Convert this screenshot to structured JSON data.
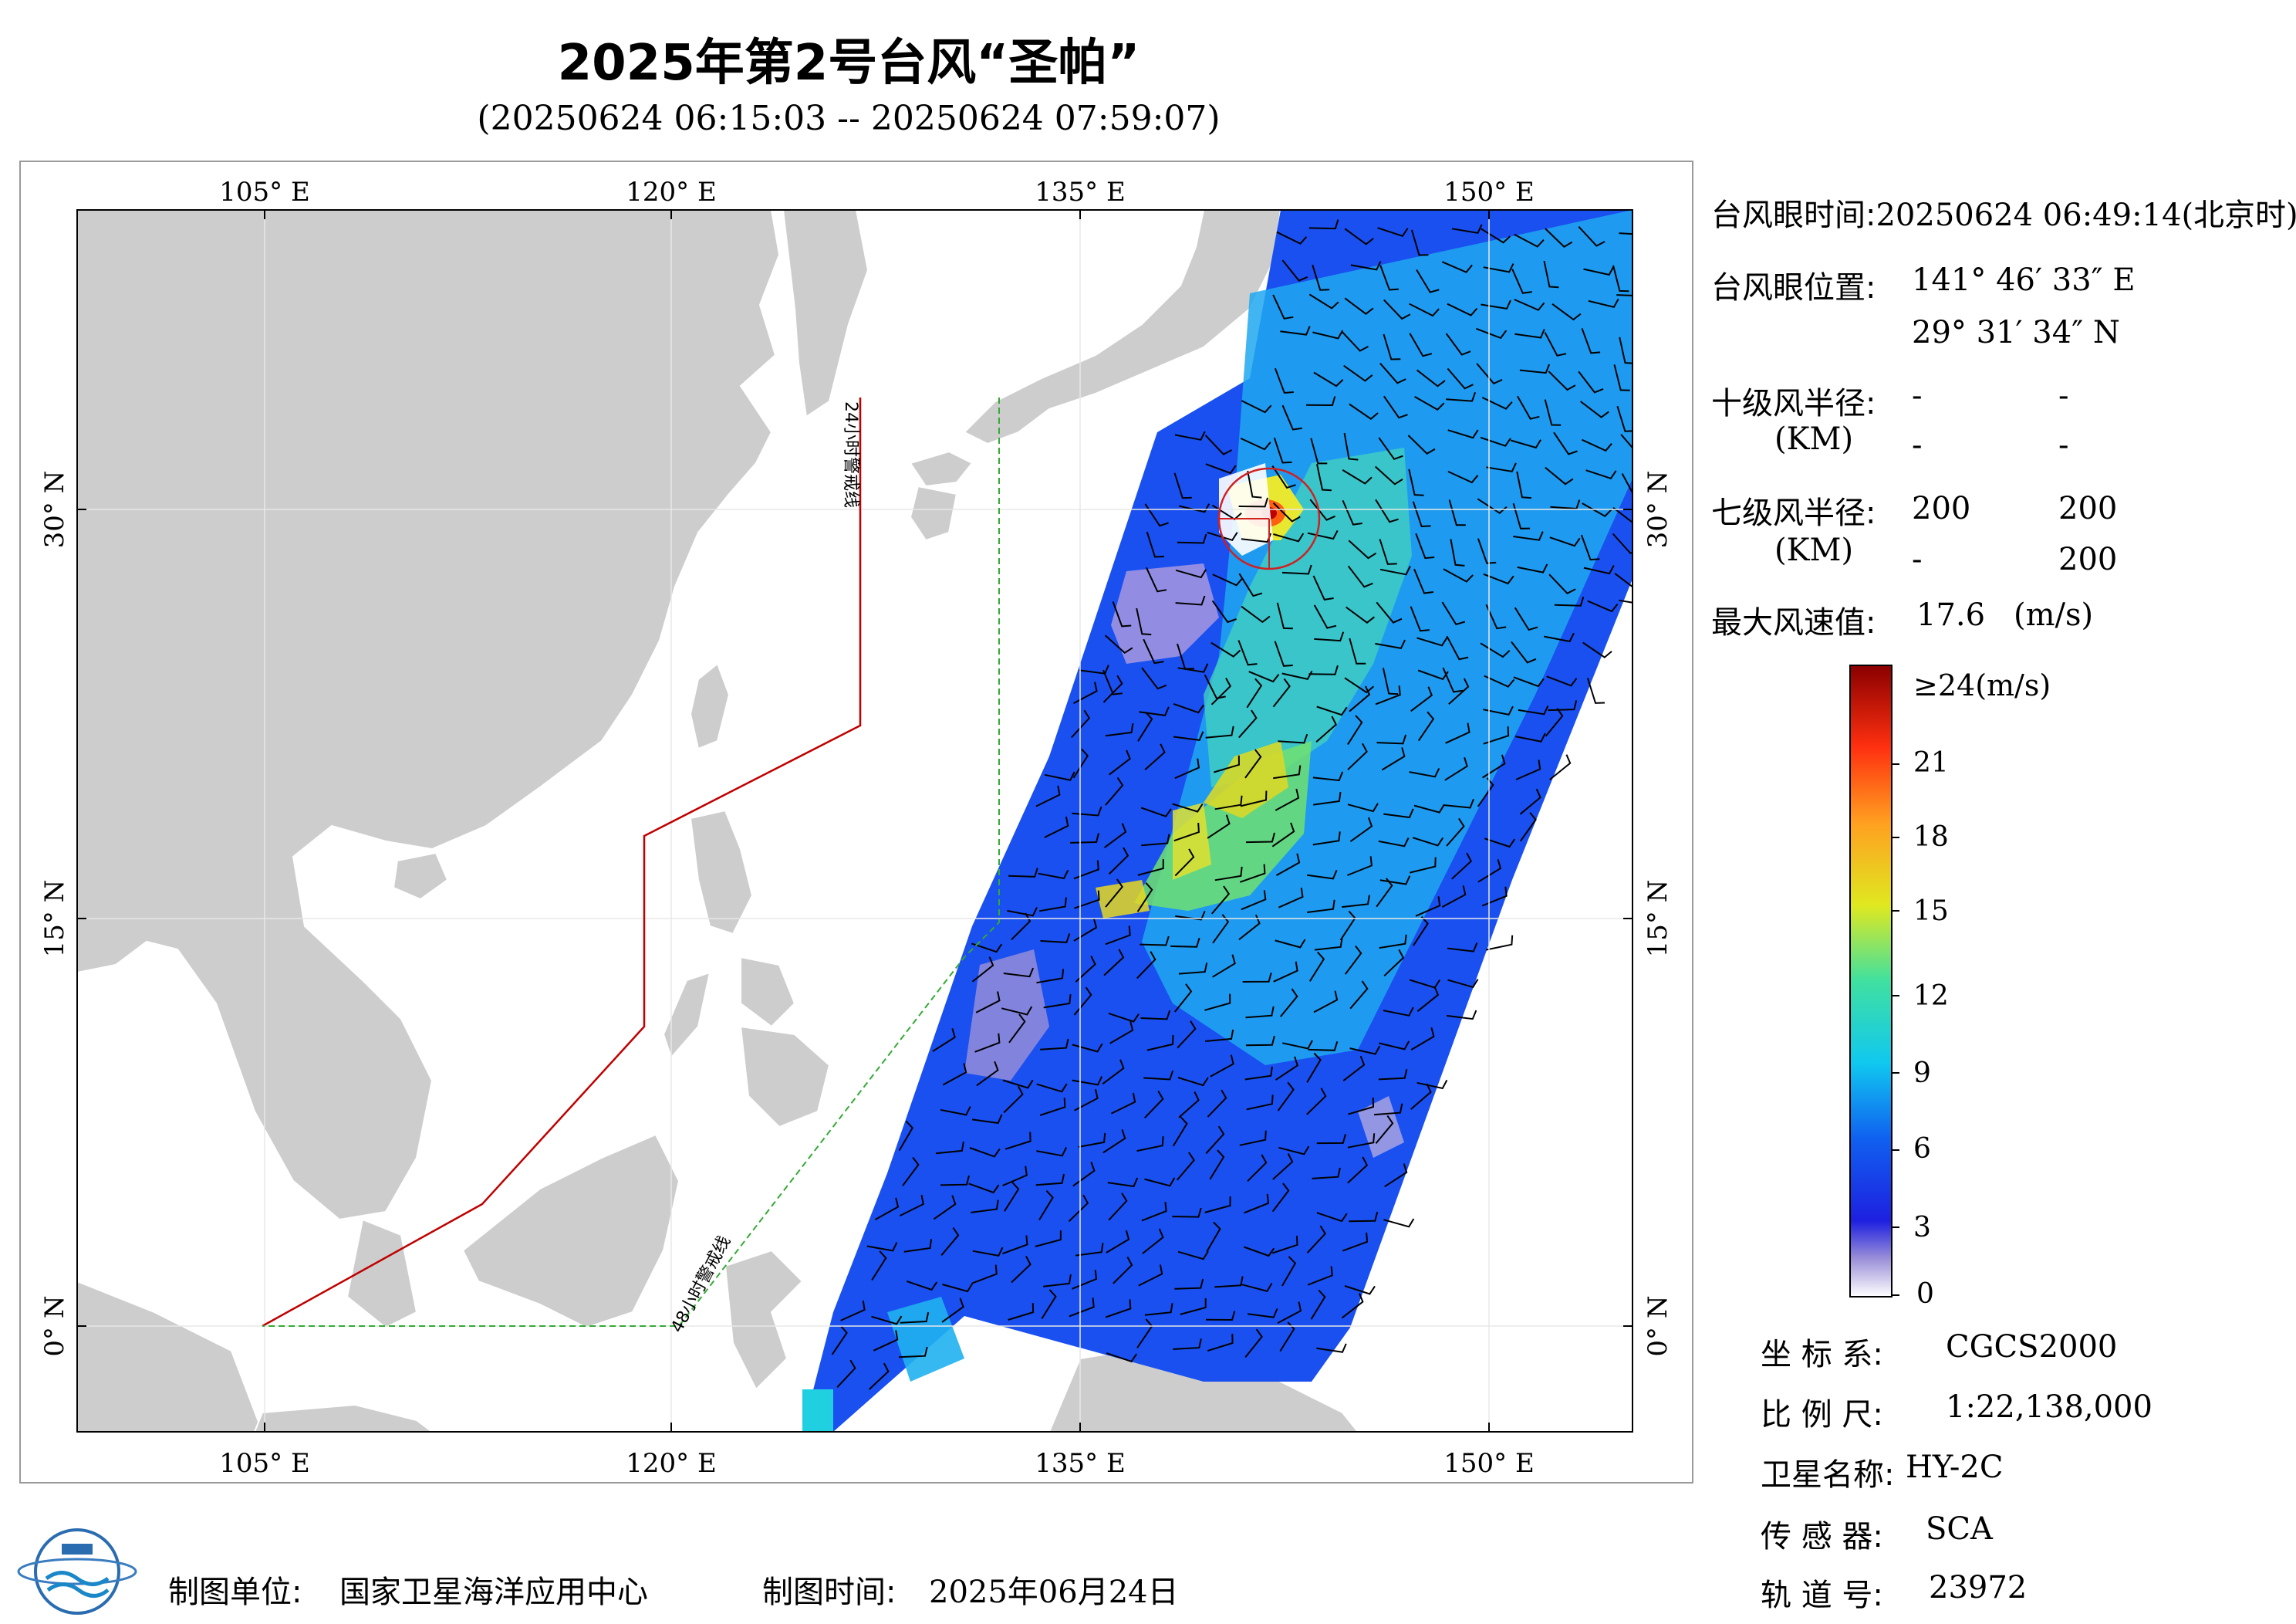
{
  "title": "2025年第2号台风“圣帕”",
  "subtitle": "(20250624 06:15:03 -- 20250624 07:59:07)",
  "map": {
    "lon_labels_top": [
      "105° E",
      "120° E",
      "135° E",
      "150° E"
    ],
    "lon_labels_bottom": [
      "105° E",
      "120° E",
      "135° E",
      "150° E"
    ],
    "lat_labels_left": [
      "30° N",
      "15° N",
      "0° N"
    ],
    "lat_labels_right": [
      "30° N",
      "15° N",
      "0° N"
    ],
    "warning_line_24h": "24小时警戒线",
    "warning_line_48h": "48小时警戒线",
    "colors": {
      "land": "#cccccc",
      "sea": "#ffffff",
      "warning_24h": "#c00000",
      "warning_48h": "#33aa33",
      "eye_circle": "#d02020"
    }
  },
  "info": {
    "eye_time_label": "台风眼时间:",
    "eye_time_value": "20250624 06:49:14(北京时)",
    "eye_pos_label": "台风眼位置:",
    "eye_lon": "141° 46′ 33″ E",
    "eye_lat": "29° 31′ 34″ N",
    "r10_label": "十级风半径:",
    "r10_unit": "(KM)",
    "r10_values": [
      "-",
      "-",
      "-",
      "-"
    ],
    "r7_label": "七级风半径:",
    "r7_unit": "(KM)",
    "r7_values": [
      "200",
      "200",
      "-",
      "200"
    ],
    "max_wind_label": "最大风速值:",
    "max_wind_value": "17.6",
    "max_wind_unit": "(m/s)"
  },
  "colorbar": {
    "top_label": "≥24(m/s)",
    "ticks": [
      "21",
      "18",
      "15",
      "12",
      "9",
      "6",
      "3",
      "0"
    ]
  },
  "meta": {
    "crs_label": "坐 标 系:",
    "crs_value": "CGCS2000",
    "scale_label": "比 例 尺:",
    "scale_value": "1:22,138,000",
    "satellite_label": "卫星名称:",
    "satellite_value": "HY-2C",
    "sensor_label": "传 感 器:",
    "sensor_value": "SCA",
    "orbit_label": "轨 道 号:",
    "orbit_value": "23972"
  },
  "footer": {
    "producer_label": "制图单位:",
    "producer_value": "国家卫星海洋应用中心",
    "date_label": "制图时间:",
    "date_value": "2025年06月24日"
  }
}
